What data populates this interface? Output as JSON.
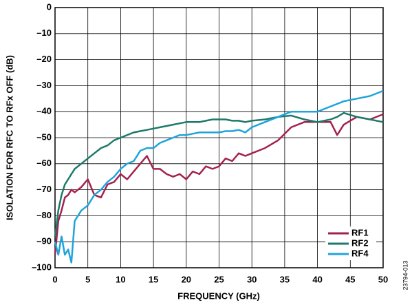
{
  "chart_data": {
    "type": "line",
    "xlabel": "FREQUENCY (GHz)",
    "ylabel": "ISOLATION FOR RFC TO RFx OFF  (dB)",
    "figure_id": "23794-013",
    "xlim": [
      0,
      50
    ],
    "ylim": [
      -100,
      0
    ],
    "xticks": [
      0,
      5,
      10,
      15,
      20,
      25,
      30,
      35,
      40,
      45,
      50
    ],
    "yticks": [
      {
        "value": 0,
        "label": "0"
      },
      {
        "value": -10,
        "label": "–10"
      },
      {
        "value": -20,
        "label": "–20"
      },
      {
        "value": -30,
        "label": "–30"
      },
      {
        "value": -40,
        "label": "–40"
      },
      {
        "value": -50,
        "label": "–50"
      },
      {
        "value": -60,
        "label": "–60"
      },
      {
        "value": -70,
        "label": "–70"
      },
      {
        "value": -80,
        "label": "–80"
      },
      {
        "value": -90,
        "label": "–90"
      },
      {
        "value": -100,
        "label": "–100"
      }
    ],
    "grid": true,
    "legend": "lower right",
    "x": [
      0,
      0.5,
      1,
      1.5,
      2,
      2.5,
      3,
      4,
      5,
      6,
      7,
      8,
      9,
      10,
      11,
      12,
      13,
      14,
      15,
      16,
      17,
      18,
      19,
      20,
      21,
      22,
      23,
      24,
      25,
      26,
      27,
      28,
      29,
      30,
      32,
      34,
      36,
      38,
      40,
      42,
      43,
      44,
      46,
      48,
      50
    ],
    "series": [
      {
        "name": "RF1",
        "color": "#a3214d",
        "values": [
          -95,
          -82,
          -78,
          -73,
          -72,
          -70,
          -71,
          -69,
          -66,
          -72,
          -73,
          -68,
          -67,
          -64,
          -66,
          -63,
          -60,
          -57,
          -62,
          -62,
          -64,
          -65,
          -64,
          -66,
          -63,
          -64,
          -61,
          -62,
          -61,
          -58,
          -59,
          -56,
          -57,
          -56,
          -54,
          -51,
          -46,
          -44,
          -44,
          -44,
          -49,
          -45,
          -42,
          -43,
          -41
        ]
      },
      {
        "name": "RF2",
        "color": "#1b7a6a",
        "values": [
          -88,
          -78,
          -72,
          -68,
          -66,
          -64,
          -62,
          -60,
          -58,
          -56,
          -54,
          -53,
          -51,
          -50,
          -49,
          -48,
          -47.5,
          -47,
          -46.5,
          -46,
          -45.5,
          -45,
          -44.5,
          -44,
          -44,
          -44,
          -43.5,
          -43,
          -43,
          -43,
          -43.5,
          -43.5,
          -44,
          -43.5,
          -43,
          -42,
          -41.5,
          -43,
          -44,
          -43,
          -42,
          -40.5,
          -42,
          -43,
          -44
        ]
      },
      {
        "name": "RF4",
        "color": "#1fa3db",
        "values": [
          -90,
          -95,
          -88,
          -95,
          -93,
          -98,
          -82,
          -78,
          -76,
          -72,
          -70,
          -67,
          -65,
          -62,
          -60,
          -59,
          -55,
          -54,
          -54,
          -52,
          -51,
          -50,
          -49,
          -49,
          -48.5,
          -48,
          -48,
          -48,
          -48,
          -47.5,
          -47.5,
          -47,
          -48,
          -46,
          -44,
          -42,
          -40,
          -40,
          -40,
          -38,
          -37,
          -36,
          -35,
          -34,
          -32
        ]
      }
    ]
  }
}
